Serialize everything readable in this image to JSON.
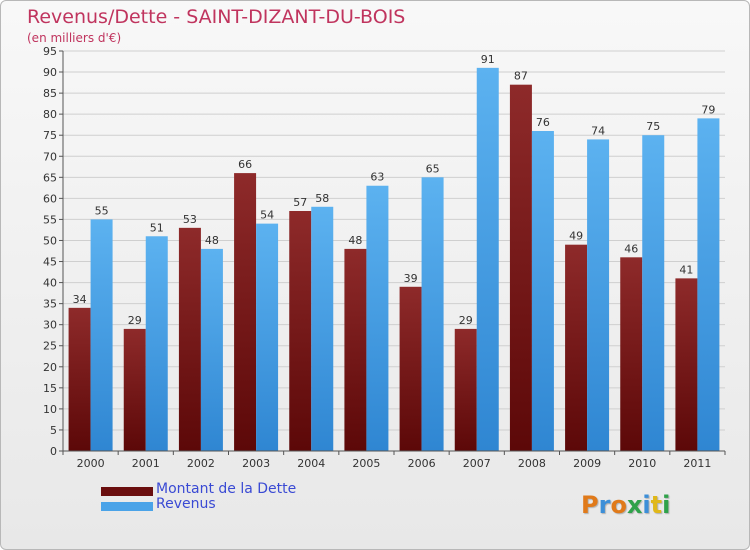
{
  "title": "Revenus/Dette - SAINT-DIZANT-DU-BOIS",
  "subtitle": "(en milliers d'€)",
  "logo": {
    "letters": [
      "P",
      "r",
      "o",
      "x",
      "i",
      "t",
      "i"
    ],
    "colors": [
      "#e07a1a",
      "#3c8fd8",
      "#e07a1a",
      "#2fa24a",
      "#3c8fd8",
      "#e0b81a",
      "#2fa24a"
    ]
  },
  "colors": {
    "debt": "#7e1a1a",
    "revenue": "#4aa3e8",
    "title": "#c0345e",
    "legend_text": "#3a4ad4"
  },
  "chart_data": {
    "type": "bar",
    "categories": [
      "2000",
      "2001",
      "2002",
      "2003",
      "2004",
      "2005",
      "2006",
      "2007",
      "2008",
      "2009",
      "2010",
      "2011"
    ],
    "series": [
      {
        "name": "Montant de la Dette",
        "values": [
          34,
          29,
          53,
          66,
          57,
          48,
          39,
          29,
          87,
          49,
          46,
          41
        ]
      },
      {
        "name": "Revenus",
        "values": [
          55,
          51,
          48,
          54,
          58,
          63,
          65,
          91,
          76,
          74,
          75,
          79
        ]
      }
    ],
    "ylim": [
      0,
      95
    ],
    "yticks": [
      0,
      5,
      10,
      15,
      20,
      25,
      30,
      35,
      40,
      45,
      50,
      55,
      60,
      65,
      70,
      75,
      80,
      85,
      90,
      95
    ],
    "grid": true,
    "legend_position": "bottom-left"
  }
}
